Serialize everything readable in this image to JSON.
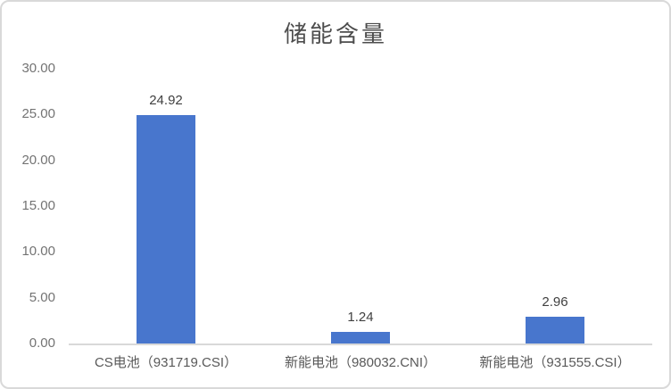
{
  "chart_data": {
    "type": "bar",
    "title": "储能含量",
    "categories": [
      "CS电池（931719.CSI）",
      "新能电池（980032.CNI）",
      "新能电池（931555.CSI）"
    ],
    "values": [
      24.92,
      1.24,
      2.96
    ],
    "data_labels": [
      "24.92",
      "1.24",
      "2.96"
    ],
    "ytick_labels": [
      "30.00",
      "25.00",
      "20.00",
      "15.00",
      "10.00",
      "5.00",
      "0.00"
    ],
    "ylim": [
      0,
      30
    ],
    "grid": false,
    "legend": false,
    "xlabel": "",
    "ylabel": ""
  },
  "style": {
    "bar_color": "#4876CD",
    "axis_line_color": "#D9D9D9",
    "frame_border_color": "#D9D9D9",
    "tick_label_color": "#737373",
    "data_label_color": "#404040",
    "category_label_color": "#595959",
    "title_color": "#4d4d4d",
    "background_color": "#ffffff"
  }
}
